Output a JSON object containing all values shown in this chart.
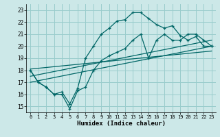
{
  "xlabel": "Humidex (Indice chaleur)",
  "bg_color": "#cce8e8",
  "grid_color": "#99cccc",
  "line_color": "#006666",
  "xlim": [
    -0.5,
    23.5
  ],
  "ylim": [
    14.5,
    23.5
  ],
  "xticks": [
    0,
    1,
    2,
    3,
    4,
    5,
    6,
    7,
    8,
    9,
    10,
    11,
    12,
    13,
    14,
    15,
    16,
    17,
    18,
    19,
    20,
    21,
    22,
    23
  ],
  "yticks": [
    15,
    16,
    17,
    18,
    19,
    20,
    21,
    22,
    23
  ],
  "line1_x": [
    0,
    1,
    2,
    3,
    4,
    5,
    6,
    7,
    8,
    9,
    10,
    11,
    12,
    13,
    14,
    15,
    16,
    17,
    18,
    19,
    20,
    21,
    22,
    23
  ],
  "line1_y": [
    18.0,
    17.0,
    16.6,
    16.0,
    16.2,
    15.2,
    16.5,
    19.0,
    20.0,
    21.0,
    21.5,
    22.1,
    22.2,
    22.8,
    22.8,
    22.3,
    21.8,
    21.5,
    21.7,
    20.9,
    20.5,
    20.8,
    20.0,
    20.0
  ],
  "line2_x": [
    0,
    1,
    2,
    3,
    4,
    5,
    6,
    7,
    8,
    9,
    10,
    11,
    12,
    13,
    14,
    15,
    16,
    17,
    18,
    19,
    20,
    21,
    22,
    23
  ],
  "line2_y": [
    18.0,
    17.0,
    16.6,
    16.0,
    16.0,
    14.8,
    16.3,
    16.6,
    18.0,
    18.8,
    19.2,
    19.5,
    19.8,
    20.5,
    21.0,
    19.0,
    20.5,
    21.0,
    20.5,
    20.5,
    21.0,
    21.0,
    20.5,
    20.0
  ],
  "line3_x": [
    0,
    23
  ],
  "line3_y": [
    17.0,
    20.0
  ],
  "line4_x": [
    0,
    23
  ],
  "line4_y": [
    17.5,
    20.5
  ],
  "line5_x": [
    0,
    23
  ],
  "line5_y": [
    18.1,
    19.6
  ]
}
